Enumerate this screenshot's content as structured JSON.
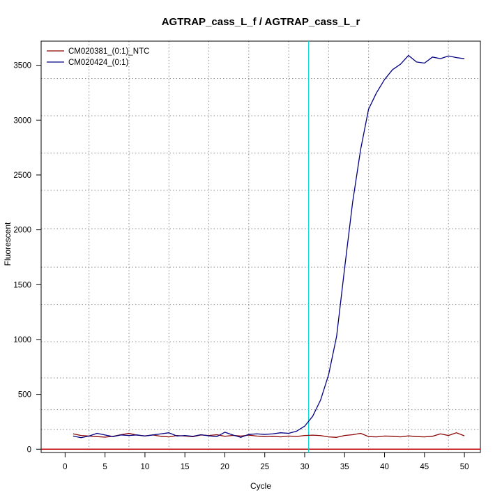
{
  "chart_data": {
    "type": "line",
    "title": "AGTRAP_cass_L_f / AGTRAP_cass_L_r",
    "xlabel": "Cycle",
    "ylabel": "Fluorescent",
    "xlim": [
      -3,
      52
    ],
    "ylim": [
      -30,
      3720
    ],
    "x_ticks": [
      0,
      5,
      10,
      15,
      20,
      25,
      30,
      35,
      40,
      45,
      50
    ],
    "y_ticks": [
      0,
      500,
      1000,
      1500,
      2000,
      2500,
      3000,
      3500
    ],
    "x_grid": [
      3,
      8,
      13,
      18,
      23,
      28,
      33,
      38,
      43,
      48
    ],
    "y_grid": [
      180,
      360,
      650,
      980,
      1320,
      1660,
      2010,
      2360,
      2700,
      3040,
      3380
    ],
    "grid": true,
    "legend_position": "top-left",
    "threshold": {
      "cycle": 30.5,
      "color": "#00d5d5"
    },
    "baseline": {
      "value": 0,
      "color": "#c00000"
    },
    "x": [
      1,
      2,
      3,
      4,
      5,
      6,
      7,
      8,
      9,
      10,
      11,
      12,
      13,
      14,
      15,
      16,
      17,
      18,
      19,
      20,
      21,
      22,
      23,
      24,
      25,
      26,
      27,
      28,
      29,
      30,
      31,
      32,
      33,
      34,
      35,
      36,
      37,
      38,
      39,
      40,
      41,
      42,
      43,
      44,
      45,
      46,
      47,
      48,
      49,
      50
    ],
    "series": [
      {
        "name": "CM020381_(0:1)_NTC",
        "color": "#8b0000",
        "values": [
          140,
          125,
          120,
          115,
          110,
          118,
          132,
          145,
          128,
          122,
          130,
          118,
          112,
          125,
          120,
          114,
          130,
          125,
          132,
          118,
          126,
          120,
          128,
          120,
          115,
          118,
          112,
          120,
          116,
          125,
          128,
          124,
          112,
          108,
          125,
          132,
          145,
          115,
          112,
          120,
          118,
          112,
          122,
          115,
          112,
          118,
          140,
          125,
          150,
          122
        ]
      },
      {
        "name": "CM020424_(0:1)",
        "color": "#000080",
        "values": [
          120,
          105,
          120,
          145,
          130,
          115,
          130,
          125,
          130,
          120,
          130,
          140,
          150,
          120,
          125,
          118,
          132,
          122,
          115,
          155,
          130,
          108,
          135,
          140,
          135,
          140,
          150,
          145,
          165,
          210,
          300,
          450,
          680,
          1030,
          1650,
          2250,
          2730,
          3100,
          3250,
          3370,
          3460,
          3510,
          3590,
          3530,
          3520,
          3575,
          3560,
          3585,
          3570,
          3560
        ]
      }
    ]
  }
}
